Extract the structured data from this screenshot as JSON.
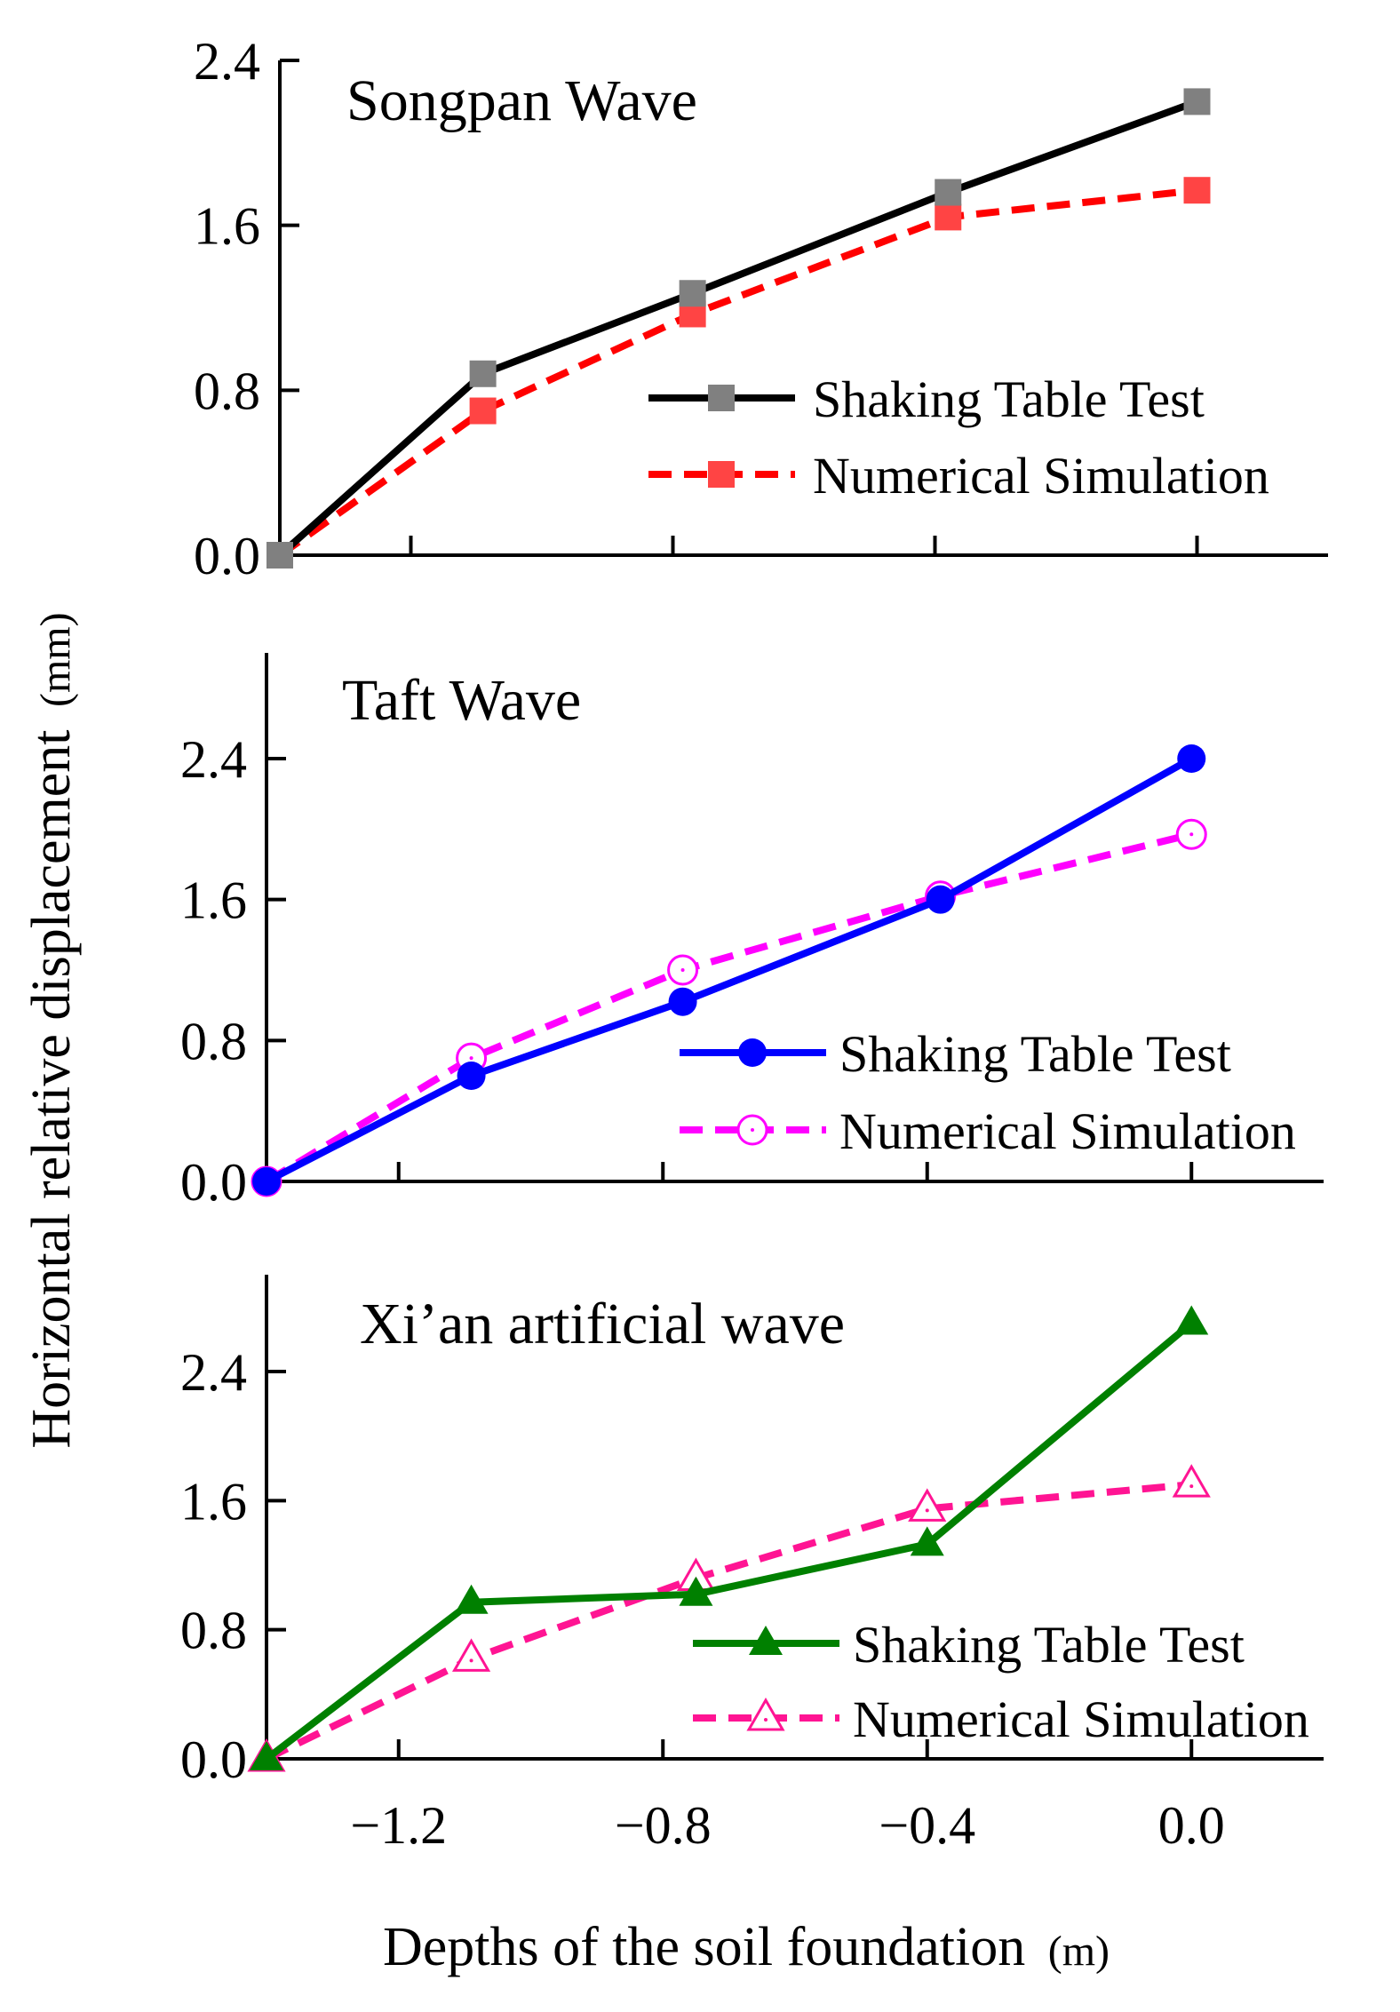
{
  "figure": {
    "ylabel": "Horizontal relative displacement",
    "ylabel_unit": "(mm)",
    "xlabel": "Depths of the soil foundation",
    "xlabel_unit": "(m)"
  },
  "chart_data": [
    {
      "type": "line",
      "title": "Songpan Wave",
      "xlim": [
        -1.4,
        0.2
      ],
      "ylim": [
        0,
        2.4
      ],
      "yticks": [
        "0.0",
        "0.8",
        "1.6",
        "2.4"
      ],
      "yticks_values": [
        0,
        0.8,
        1.6,
        2.4
      ],
      "xticks_values": [
        -1.2,
        -0.8,
        -0.4,
        0.0
      ],
      "legend_position": "center-right",
      "series": [
        {
          "name": "Shaking Table Test",
          "color": "#000000",
          "marker": "square",
          "marker_color": "#808080",
          "dash": "solid",
          "x": [
            -1.4,
            -1.09,
            -0.77,
            -0.38,
            0.0
          ],
          "y": [
            0.0,
            0.88,
            1.27,
            1.76,
            2.2
          ]
        },
        {
          "name": "Numerical Simulation",
          "color": "#ff0000",
          "marker": "square",
          "marker_color": "#ff4444",
          "dash": "dashed",
          "x": [
            -1.4,
            -1.09,
            -0.77,
            -0.38,
            0.0
          ],
          "y": [
            0.0,
            0.7,
            1.17,
            1.64,
            1.77
          ]
        }
      ]
    },
    {
      "type": "line",
      "title": "Taft Wave",
      "xlim": [
        -1.4,
        0.2
      ],
      "ylim": [
        0,
        3.0
      ],
      "yticks": [
        "0.0",
        "0.8",
        "1.6",
        "2.4"
      ],
      "yticks_values": [
        0,
        0.8,
        1.6,
        2.4
      ],
      "xticks_values": [
        -1.2,
        -0.8,
        -0.4,
        0.0
      ],
      "legend_position": "center-right",
      "series": [
        {
          "name": "Shaking Table Test",
          "color": "#0000ff",
          "marker": "filled-circle",
          "marker_color": "#0000ff",
          "dash": "solid",
          "x": [
            -1.4,
            -1.09,
            -0.77,
            -0.38,
            0.0
          ],
          "y": [
            0.0,
            0.6,
            1.02,
            1.6,
            2.4
          ]
        },
        {
          "name": "Numerical Simulation",
          "color": "#ff00ff",
          "marker": "open-circle",
          "marker_color": "#ff00ff",
          "dash": "dashed",
          "x": [
            -1.4,
            -1.09,
            -0.77,
            -0.38,
            0.0
          ],
          "y": [
            0.0,
            0.7,
            1.2,
            1.62,
            1.97
          ]
        }
      ]
    },
    {
      "type": "line",
      "title": "Xi’an artificial wave",
      "xlim": [
        -1.4,
        0.2
      ],
      "ylim": [
        0,
        3.0
      ],
      "yticks": [
        "0.0",
        "0.8",
        "1.6",
        "2.4"
      ],
      "yticks_values": [
        0,
        0.8,
        1.6,
        2.4
      ],
      "xticks": [
        "−1.2",
        "−0.8",
        "−0.4",
        "0.0"
      ],
      "xticks_values": [
        -1.2,
        -0.8,
        -0.4,
        0.0
      ],
      "legend_position": "bottom-right",
      "series": [
        {
          "name": "Shaking Table Test",
          "color": "#008000",
          "marker": "filled-triangle",
          "marker_color": "#008000",
          "dash": "solid",
          "x": [
            -1.4,
            -1.09,
            -0.75,
            -0.4,
            0.0
          ],
          "y": [
            0.0,
            0.97,
            1.02,
            1.33,
            2.7
          ]
        },
        {
          "name": "Numerical Simulation",
          "color": "#ff1493",
          "marker": "open-triangle",
          "marker_color": "#ff1493",
          "dash": "dashed",
          "x": [
            -1.4,
            -1.09,
            -0.75,
            -0.4,
            0.0
          ],
          "y": [
            0.0,
            0.62,
            1.12,
            1.55,
            1.7
          ]
        }
      ]
    }
  ]
}
